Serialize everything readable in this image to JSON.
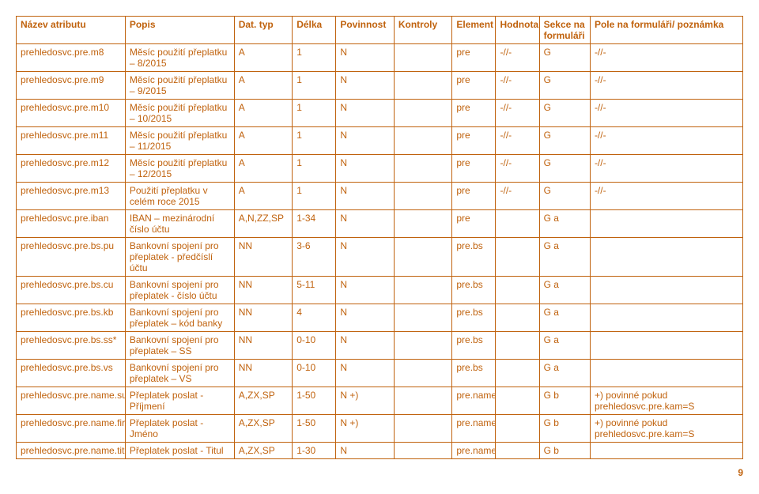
{
  "table": {
    "headers": [
      "Název atributu",
      "Popis",
      "Dat. typ",
      "Délka",
      "Povinnost",
      "Kontroly",
      "Element",
      "Hodnota",
      "Sekce na formuláři",
      "Pole na formuláři/ poznámka"
    ],
    "rows": [
      {
        "cells": [
          "prehledosvc.pre.m8",
          "Měsíc použití přeplatku – 8/2015",
          "A",
          "1",
          "N",
          "",
          "pre",
          "-//-",
          "G",
          "-//-"
        ]
      },
      {
        "cells": [
          "prehledosvc.pre.m9",
          "Měsíc použití přeplatku – 9/2015",
          "A",
          "1",
          "N",
          "",
          "pre",
          "-//-",
          "G",
          "-//-"
        ]
      },
      {
        "cells": [
          "prehledosvc.pre.m10",
          "Měsíc použití přeplatku – 10/2015",
          "A",
          "1",
          "N",
          "",
          "pre",
          "-//-",
          "G",
          "-//-"
        ]
      },
      {
        "cells": [
          "prehledosvc.pre.m11",
          "Měsíc použití přeplatku – 11/2015",
          "A",
          "1",
          "N",
          "",
          "pre",
          "-//-",
          "G",
          "-//-"
        ]
      },
      {
        "cells": [
          "prehledosvc.pre.m12",
          "Měsíc použití přeplatku – 12/2015",
          "A",
          "1",
          "N",
          "",
          "pre",
          "-//-",
          "G",
          "-//-"
        ]
      },
      {
        "cells": [
          "prehledosvc.pre.m13",
          "Použití přeplatku v celém roce 2015",
          "A",
          "1",
          "N",
          "",
          "pre",
          "-//-",
          "G",
          "-//-"
        ]
      },
      {
        "cells": [
          "prehledosvc.pre.iban",
          "IBAN – mezinárodní číslo účtu",
          "A,N,ZZ,SP",
          "1-34",
          "N",
          "",
          "pre",
          "",
          "G a",
          ""
        ]
      },
      {
        "cells": [
          "prehledosvc.pre.bs.pu",
          "Bankovní spojení pro přeplatek - předčíslí účtu",
          "NN",
          "3-6",
          "N",
          "",
          "pre.bs",
          "",
          "G a",
          ""
        ]
      },
      {
        "cells": [
          "prehledosvc.pre.bs.cu",
          "Bankovní spojení pro přeplatek - číslo účtu",
          "NN",
          "5-11",
          "N",
          "",
          "pre.bs",
          "",
          "G a",
          ""
        ]
      },
      {
        "cells": [
          "prehledosvc.pre.bs.kb",
          "Bankovní spojení pro přeplatek – kód banky",
          "NN",
          "4",
          "N",
          "",
          "pre.bs",
          "",
          "G a",
          ""
        ]
      },
      {
        "cells": [
          "prehledosvc.pre.bs.ss*",
          "Bankovní spojení pro přeplatek – SS",
          "NN",
          "0-10",
          "N",
          "",
          "pre.bs",
          "",
          "G a",
          ""
        ]
      },
      {
        "cells": [
          "prehledosvc.pre.bs.vs",
          "Bankovní spojení pro přeplatek – VS",
          "NN",
          "0-10",
          "N",
          "",
          "pre.bs",
          "",
          "G a",
          ""
        ]
      },
      {
        "cells": [
          "prehledosvc.pre.name.sur",
          "Přeplatek poslat - Příjmení",
          "A,ZX,SP",
          "1-50",
          "N +)",
          "",
          "pre.name",
          "",
          "G b",
          "+) povinné pokud prehledosvc.pre.kam=S"
        ]
      },
      {
        "cells": [
          "prehledosvc.pre.name.fir",
          "Přeplatek poslat - Jméno",
          "A,ZX,SP",
          "1-50",
          "N +)",
          "",
          "pre.name",
          "",
          "G b",
          "+) povinné pokud prehledosvc.pre.kam=S"
        ]
      },
      {
        "cells": [
          "prehledosvc.pre.name.tit",
          "Přeplatek poslat - Titul",
          "A,ZX,SP",
          "1-30",
          "N",
          "",
          "pre.name",
          "",
          "G b",
          ""
        ]
      }
    ]
  },
  "page_number": "9",
  "colors": {
    "text": "#c0620d",
    "border": "#c0620d",
    "background": "#ffffff"
  }
}
